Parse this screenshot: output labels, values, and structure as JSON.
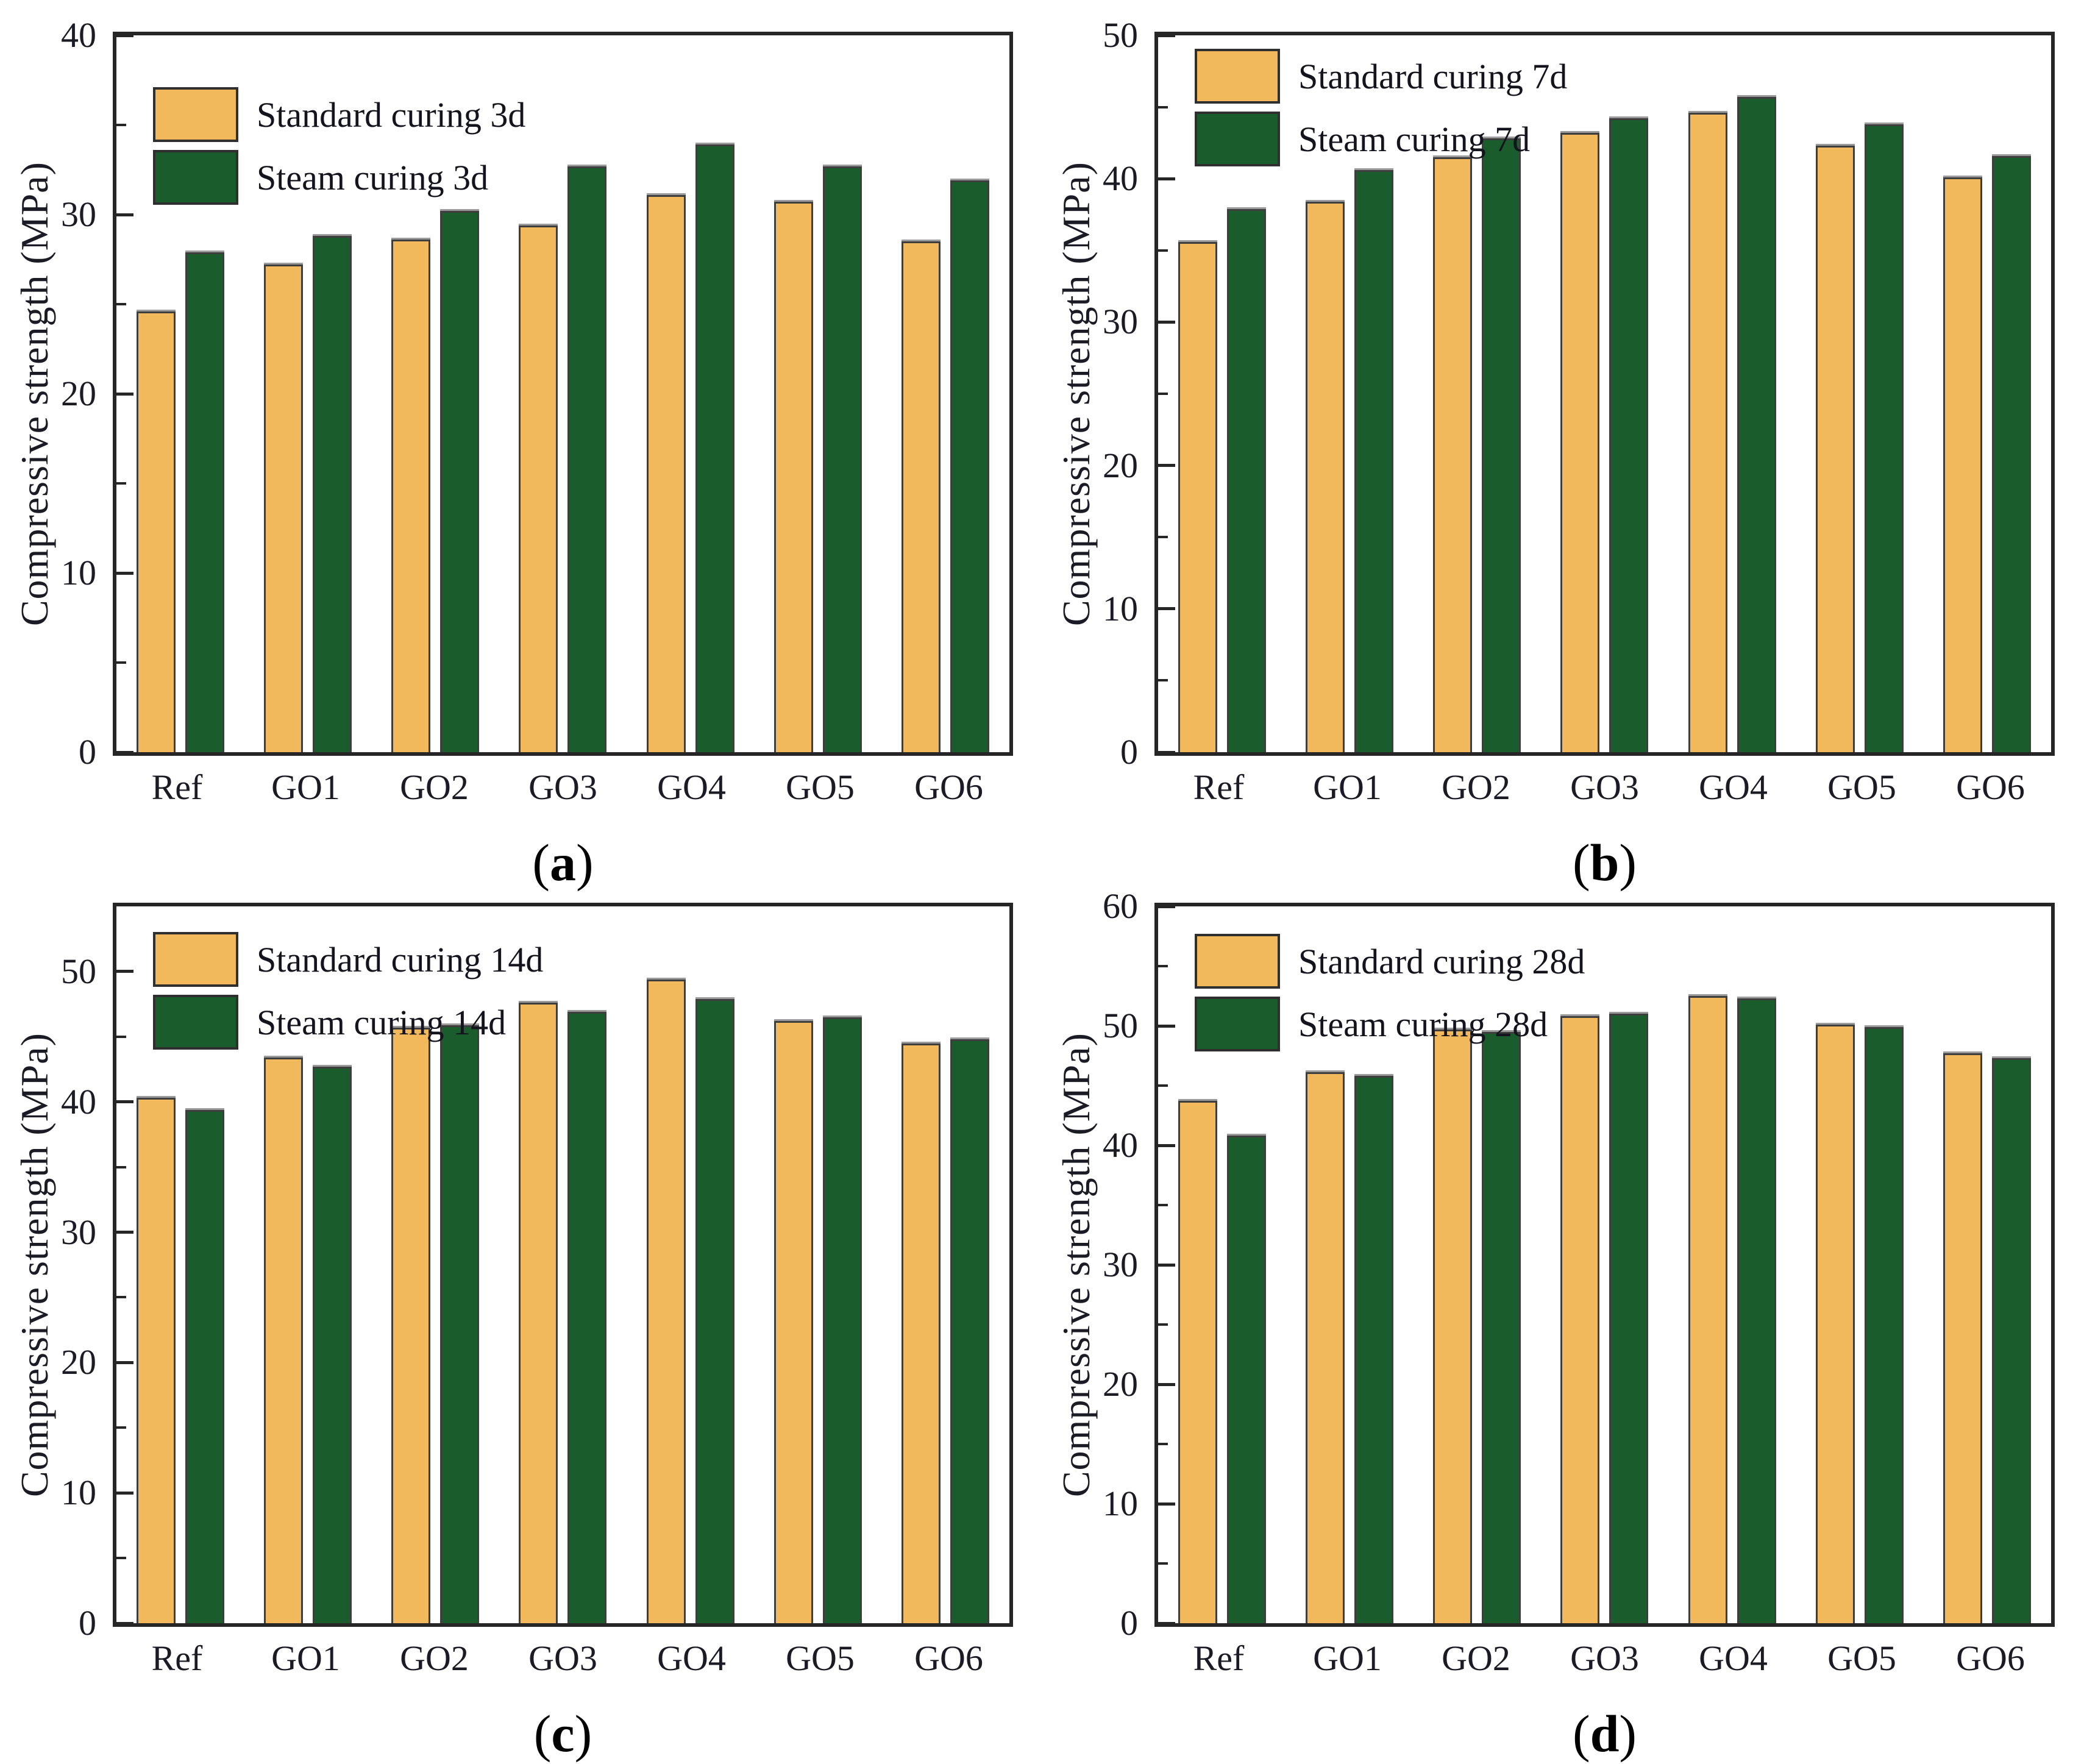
{
  "figure": {
    "background": "#ffffff",
    "text_color": "#1b1b26",
    "axis_color": "#262626",
    "bar_border_color": "#3e3e3e",
    "series_colors": {
      "standard": "#F1B95C",
      "steam": "#1A5C2C"
    },
    "ylabel": "Compressive strength (MPa)"
  },
  "chart_data": [
    {
      "type": "bar",
      "panel_id": "a",
      "caption_letter": "a",
      "title": "",
      "xlabel": "",
      "ylabel": "Compressive strength (MPa)",
      "ylim": [
        0,
        40
      ],
      "yticks_major": [
        0,
        10,
        20,
        30,
        40
      ],
      "yticks_minor": [
        5,
        15,
        25,
        35
      ],
      "grid": false,
      "legend_position": "top-left",
      "legend_offset_top": 85,
      "categories": [
        "Ref",
        "GO1",
        "GO2",
        "GO3",
        "GO4",
        "GO5",
        "GO6"
      ],
      "series": [
        {
          "name": "Standard curing 3d",
          "color_key": "standard",
          "values": [
            24.6,
            27.2,
            28.6,
            29.4,
            31.1,
            30.7,
            28.5
          ]
        },
        {
          "name": "Steam curing 3d",
          "color_key": "steam",
          "values": [
            27.9,
            28.8,
            30.2,
            32.7,
            33.9,
            32.7,
            31.9
          ]
        }
      ]
    },
    {
      "type": "bar",
      "panel_id": "b",
      "caption_letter": "b",
      "title": "",
      "xlabel": "",
      "ylabel": "Compressive strength (MPa)",
      "ylim": [
        0,
        50
      ],
      "yticks_major": [
        0,
        10,
        20,
        30,
        40,
        50
      ],
      "yticks_minor": [
        5,
        15,
        25,
        35,
        45
      ],
      "grid": false,
      "legend_position": "top-left",
      "legend_offset_top": 22,
      "categories": [
        "Ref",
        "GO1",
        "GO2",
        "GO3",
        "GO4",
        "GO5",
        "GO6"
      ],
      "series": [
        {
          "name": "Standard curing 7d",
          "color_key": "standard",
          "values": [
            35.6,
            38.4,
            41.5,
            43.2,
            44.6,
            42.3,
            40.1
          ]
        },
        {
          "name": "Steam curing 7d",
          "color_key": "steam",
          "values": [
            37.9,
            40.6,
            42.8,
            44.2,
            45.7,
            43.8,
            41.6
          ]
        }
      ]
    },
    {
      "type": "bar",
      "panel_id": "c",
      "caption_letter": "c",
      "title": "",
      "xlabel": "",
      "ylabel": "Compressive strength (MPa)",
      "ylim": [
        0,
        55
      ],
      "yticks_major": [
        0,
        10,
        20,
        30,
        40,
        50
      ],
      "yticks_minor": [
        5,
        15,
        25,
        35,
        45
      ],
      "grid": false,
      "legend_position": "top-left",
      "legend_offset_top": 42,
      "categories": [
        "Ref",
        "GO1",
        "GO2",
        "GO3",
        "GO4",
        "GO5",
        "GO6"
      ],
      "series": [
        {
          "name": "Standard curing 14d",
          "color_key": "standard",
          "values": [
            40.3,
            43.4,
            45.7,
            47.6,
            49.4,
            46.2,
            44.5
          ]
        },
        {
          "name": "Steam curing 14d",
          "color_key": "steam",
          "values": [
            39.4,
            42.7,
            45.9,
            46.9,
            47.9,
            46.5,
            44.8
          ]
        }
      ]
    },
    {
      "type": "bar",
      "panel_id": "d",
      "caption_letter": "d",
      "title": "",
      "xlabel": "",
      "ylabel": "Compressive strength (MPa)",
      "ylim": [
        0,
        60
      ],
      "yticks_major": [
        0,
        10,
        20,
        30,
        40,
        50,
        60
      ],
      "yticks_minor": [
        5,
        15,
        25,
        35,
        45,
        55
      ],
      "grid": false,
      "legend_position": "top-left",
      "legend_offset_top": 45,
      "categories": [
        "Ref",
        "GO1",
        "GO2",
        "GO3",
        "GO4",
        "GO5",
        "GO6"
      ],
      "series": [
        {
          "name": "Standard curing 28d",
          "color_key": "standard",
          "values": [
            43.7,
            46.1,
            49.7,
            50.8,
            52.5,
            50.1,
            47.7
          ]
        },
        {
          "name": "Steam curing 28d",
          "color_key": "steam",
          "values": [
            40.8,
            45.8,
            49.5,
            51.0,
            52.3,
            49.9,
            47.3
          ]
        }
      ]
    }
  ]
}
